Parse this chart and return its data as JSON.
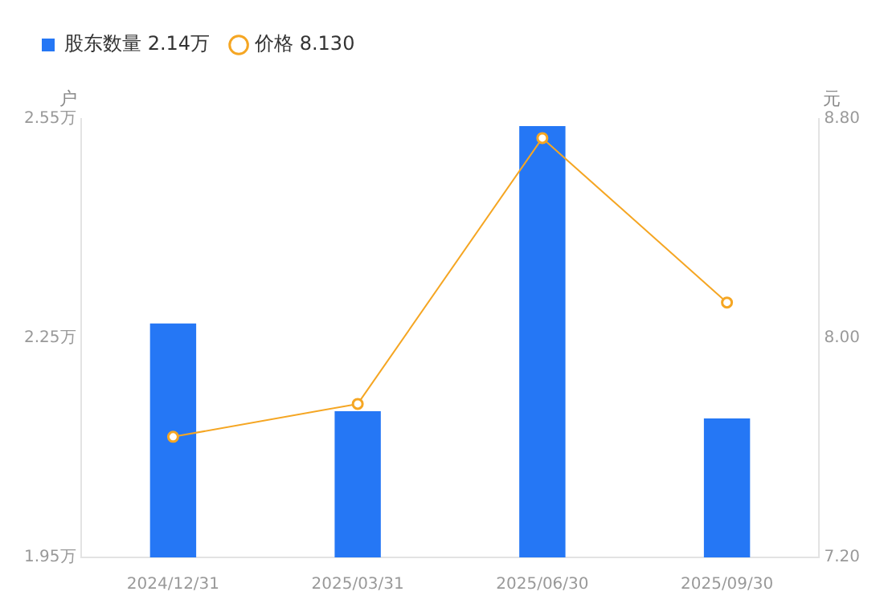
{
  "chart_data": {
    "type": "bar",
    "categories": [
      "2024/12/31",
      "2025/03/31",
      "2025/06/30",
      "2025/09/30"
    ],
    "series": [
      {
        "name": "股东数量 2.14万",
        "color": "#2577f5",
        "values": [
          2.27,
          2.15,
          2.54,
          2.14
        ]
      },
      {
        "name": "价格 8.130",
        "type": "line",
        "axis": "y2",
        "color": "#f5a623",
        "values": [
          7.64,
          7.76,
          8.73,
          8.13
        ]
      }
    ],
    "ylabel": "户",
    "y2label": "元",
    "ylim": [
      1.95,
      2.55
    ],
    "yticks": [
      {
        "value": 1.95,
        "label": "1.95万"
      },
      {
        "value": 2.25,
        "label": "2.25万"
      },
      {
        "value": 2.55,
        "label": "2.55万"
      }
    ],
    "y2lim": [
      7.2,
      8.8
    ],
    "y2ticks": [
      {
        "value": 7.2,
        "label": "7.20"
      },
      {
        "value": 8,
        "label": "8.00"
      },
      {
        "value": 8.8,
        "label": "8.80"
      }
    ],
    "legend": "top left",
    "marker": "circle",
    "grid": false
  }
}
